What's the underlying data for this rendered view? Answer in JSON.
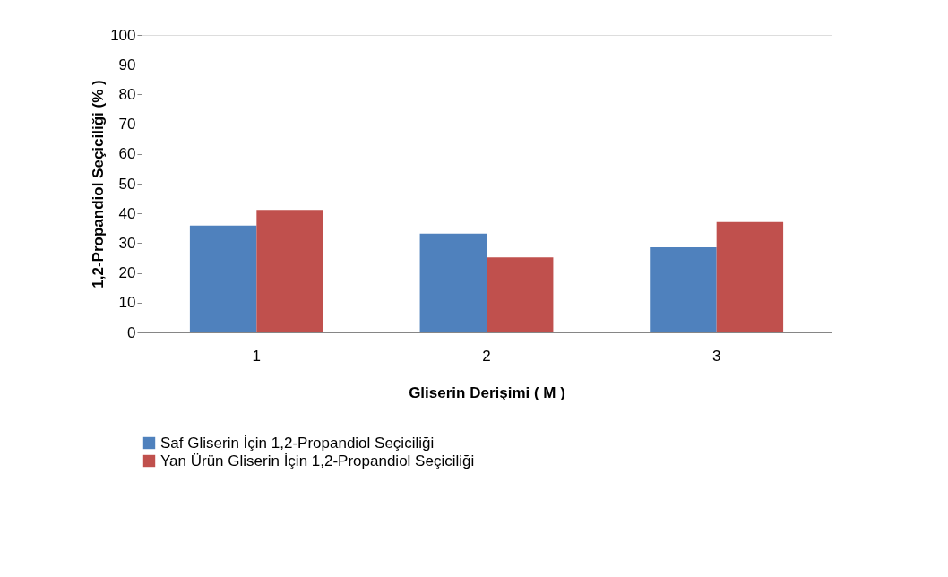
{
  "chart_data": {
    "type": "bar",
    "xlabel": "Gliserin Derişimi ( M )",
    "ylabel": "1,2-Propandiol Seçiciliği (% )",
    "categories": [
      "1",
      "2",
      "3"
    ],
    "series": [
      {
        "name": "Saf Gliserin İçin 1,2-Propandiol Seçiciliği",
        "color": "#4f81bd",
        "values": [
          35.9,
          33.2,
          28.6
        ]
      },
      {
        "name": "Yan Ürün Gliserin İçin 1,2-Propandiol Seçiciliği",
        "color": "#c0504d",
        "values": [
          41.2,
          25.2,
          37.1
        ]
      }
    ],
    "ylim": [
      0,
      100
    ],
    "yticks": [
      0,
      10,
      20,
      30,
      40,
      50,
      60,
      70,
      80,
      90,
      100
    ],
    "grid": false,
    "legend": "bottom"
  }
}
